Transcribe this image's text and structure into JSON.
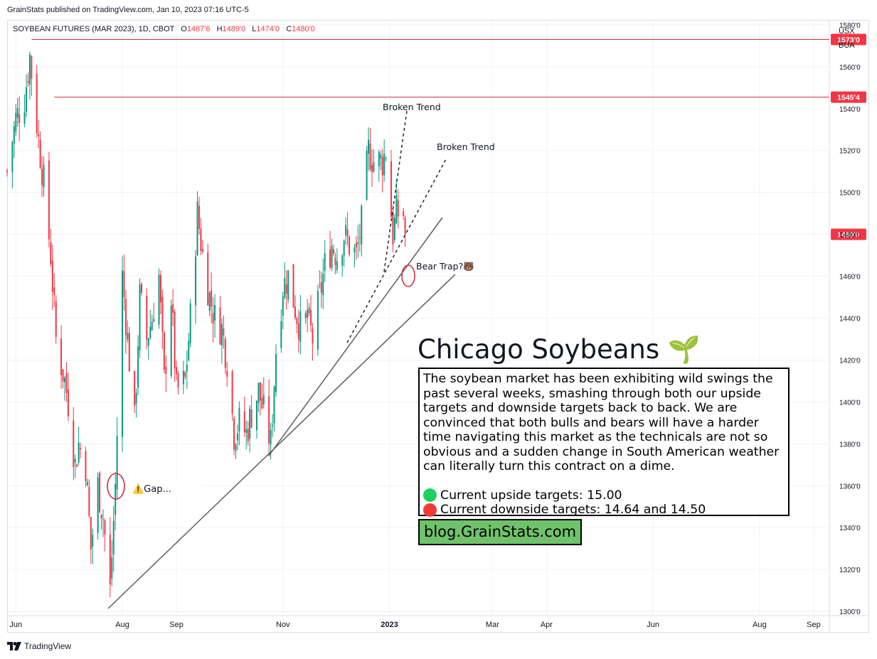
{
  "header": {
    "published": "GrainStats published on TradingView.com, Jan 10, 2023 07:16 UTC-5",
    "symbol": "SOYBEAN FUTURES (MAR 2023), 1D, CBOT",
    "o_label": "O",
    "o_value": "1487'6",
    "h_label": "H",
    "h_value": "1489'0",
    "l_label": "L",
    "l_value": "1474'0",
    "c_label": "C",
    "c_value": "1480'0",
    "currency": "USX",
    "unit": "BUA"
  },
  "colors": {
    "up": "#089981",
    "down": "#f23645",
    "level_line": "#d32f3f",
    "trendline": "#5d5d5d",
    "label_bg": "#f23645",
    "blog_bg": "#6fc26b",
    "green_dot": "#1fd061",
    "red_dot": "#f23a35"
  },
  "chart_data": {
    "type": "candlestick",
    "interval": "1D",
    "y_range": [
      12980,
      15820
    ],
    "y_ticks": [
      "1300'0",
      "1320'0",
      "1340'0",
      "1360'0",
      "1380'0",
      "1400'0",
      "1420'0",
      "1440'0",
      "1460'0",
      "1480'0",
      "1500'0",
      "1520'0",
      "1540'0",
      "1560'0",
      "1580'0"
    ],
    "y_tick_values": [
      13000,
      13200,
      13400,
      13600,
      13800,
      14000,
      14200,
      14400,
      14600,
      14800,
      15000,
      15200,
      15400,
      15600,
      15800
    ],
    "x_range": [
      "2022-05-27",
      "2023-09-10"
    ],
    "x_ticks": [
      {
        "label": "Jun",
        "date": "2022-06-01",
        "bold": false
      },
      {
        "label": "Aug",
        "date": "2022-08-01",
        "bold": false
      },
      {
        "label": "Sep",
        "date": "2022-09-01",
        "bold": false
      },
      {
        "label": "Nov",
        "date": "2022-11-01",
        "bold": false
      },
      {
        "label": "2023",
        "date": "2023-01-01",
        "bold": true
      },
      {
        "label": "Mar",
        "date": "2023-03-01",
        "bold": false
      },
      {
        "label": "Apr",
        "date": "2023-04-01",
        "bold": false
      },
      {
        "label": "Jun",
        "date": "2023-06-01",
        "bold": false
      },
      {
        "label": "Aug",
        "date": "2023-08-01",
        "bold": false
      },
      {
        "label": "Sep",
        "date": "2023-09-01",
        "bold": false
      }
    ],
    "close_series": [
      {
        "date": "2022-05-27",
        "c": 15100
      },
      {
        "date": "2022-06-01",
        "c": 15350
      },
      {
        "date": "2022-06-06",
        "c": 15450
      },
      {
        "date": "2022-06-09",
        "c": 15650
      },
      {
        "date": "2022-06-14",
        "c": 15250
      },
      {
        "date": "2022-06-17",
        "c": 15050
      },
      {
        "date": "2022-06-21",
        "c": 14700
      },
      {
        "date": "2022-06-24",
        "c": 14300
      },
      {
        "date": "2022-06-29",
        "c": 14100
      },
      {
        "date": "2022-07-01",
        "c": 14000
      },
      {
        "date": "2022-07-05",
        "c": 13700
      },
      {
        "date": "2022-07-07",
        "c": 13800
      },
      {
        "date": "2022-07-11",
        "c": 13700
      },
      {
        "date": "2022-07-14",
        "c": 13300
      },
      {
        "date": "2022-07-18",
        "c": 13600
      },
      {
        "date": "2022-07-21",
        "c": 13450
      },
      {
        "date": "2022-07-25",
        "c": 13100
      },
      {
        "date": "2022-07-28",
        "c": 13600
      },
      {
        "date": "2022-08-01",
        "c": 14600
      },
      {
        "date": "2022-08-04",
        "c": 14300
      },
      {
        "date": "2022-08-08",
        "c": 13900
      },
      {
        "date": "2022-08-11",
        "c": 14500
      },
      {
        "date": "2022-08-15",
        "c": 14300
      },
      {
        "date": "2022-08-18",
        "c": 14400
      },
      {
        "date": "2022-08-22",
        "c": 14600
      },
      {
        "date": "2022-08-25",
        "c": 14100
      },
      {
        "date": "2022-08-29",
        "c": 14500
      },
      {
        "date": "2022-09-01",
        "c": 14050
      },
      {
        "date": "2022-09-06",
        "c": 14100
      },
      {
        "date": "2022-09-09",
        "c": 14400
      },
      {
        "date": "2022-09-13",
        "c": 14900
      },
      {
        "date": "2022-09-16",
        "c": 14700
      },
      {
        "date": "2022-09-20",
        "c": 14500
      },
      {
        "date": "2022-09-23",
        "c": 14400
      },
      {
        "date": "2022-09-27",
        "c": 14350
      },
      {
        "date": "2022-09-30",
        "c": 14200
      },
      {
        "date": "2022-10-04",
        "c": 13850
      },
      {
        "date": "2022-10-07",
        "c": 13900
      },
      {
        "date": "2022-10-11",
        "c": 13850
      },
      {
        "date": "2022-10-14",
        "c": 13950
      },
      {
        "date": "2022-10-18",
        "c": 14050
      },
      {
        "date": "2022-10-21",
        "c": 13950
      },
      {
        "date": "2022-10-25",
        "c": 13800
      },
      {
        "date": "2022-10-28",
        "c": 14250
      },
      {
        "date": "2022-11-01",
        "c": 14550
      },
      {
        "date": "2022-11-04",
        "c": 14600
      },
      {
        "date": "2022-11-08",
        "c": 14450
      },
      {
        "date": "2022-11-11",
        "c": 14350
      },
      {
        "date": "2022-11-15",
        "c": 14400
      },
      {
        "date": "2022-11-18",
        "c": 14300
      },
      {
        "date": "2022-11-22",
        "c": 14500
      },
      {
        "date": "2022-11-25",
        "c": 14650
      },
      {
        "date": "2022-11-29",
        "c": 14750
      },
      {
        "date": "2022-12-02",
        "c": 14700
      },
      {
        "date": "2022-12-06",
        "c": 14800
      },
      {
        "date": "2022-12-09",
        "c": 14750
      },
      {
        "date": "2022-12-13",
        "c": 14700
      },
      {
        "date": "2022-12-16",
        "c": 14850
      },
      {
        "date": "2022-12-20",
        "c": 15200
      },
      {
        "date": "2022-12-23",
        "c": 15150
      },
      {
        "date": "2022-12-28",
        "c": 15150
      },
      {
        "date": "2022-12-30",
        "c": 15200
      },
      {
        "date": "2023-01-03",
        "c": 14800
      },
      {
        "date": "2023-01-05",
        "c": 14900
      },
      {
        "date": "2023-01-09",
        "c": 14900
      },
      {
        "date": "2023-01-10",
        "c": 14800
      }
    ],
    "last_candle": {
      "o": 14877.5,
      "h": 14890,
      "l": 14740,
      "c": 14800
    },
    "price_levels": [
      {
        "label": "1573'0",
        "value": 15730,
        "from_date": "2022-06-10"
      },
      {
        "label": "1545'4",
        "value": 15455,
        "from_date": "2022-06-23"
      }
    ],
    "last_price_label": "1480'0",
    "annotations": {
      "broken_trend_1": "Broken Trend",
      "broken_trend_2": "Broken Trend",
      "bear_trap": "Bear Trap?",
      "bear_trap_emoji": "🐻",
      "gap": "Gap...",
      "gap_emoji": "⚠️"
    }
  },
  "overlay": {
    "title": "Chicago Soybeans",
    "title_emoji": "🌱",
    "body": "The soybean market has been exhibiting wild swings the past several weeks, smashing through both our upside targets and downside targets back to back. We are convinced that both bulls and bears will have a harder time navigating this market as the technicals are not so obvious and a sudden change in South American weather can literally turn this contract on a dime.",
    "upside": "Current upside targets: 15.00",
    "downside": "Current downside targets: 14.64 and 14.50",
    "blog": "blog.GrainStats.com"
  },
  "footer": {
    "brand": "TradingView"
  }
}
